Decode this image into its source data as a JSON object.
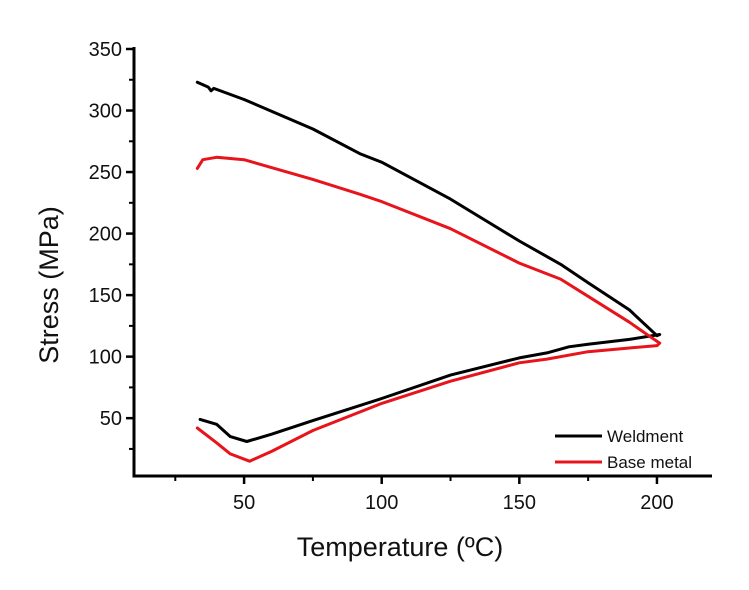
{
  "chart_data": {
    "type": "line",
    "title": "",
    "xlabel": "Temperature (ºC)",
    "ylabel": "Stress (MPa)",
    "xlim": [
      10,
      220
    ],
    "ylim": [
      3,
      350
    ],
    "xticks": [
      50,
      100,
      150,
      200
    ],
    "xminor": [
      25,
      75,
      125,
      175
    ],
    "yticks": [
      50,
      100,
      150,
      200,
      250,
      300,
      350
    ],
    "yminor": [
      25,
      75,
      125,
      175,
      225,
      275,
      325
    ],
    "grid": false,
    "legend_position": "bottom-right",
    "series": [
      {
        "name": "Weldment",
        "color": "#000000",
        "x": [
          33,
          37,
          38,
          39,
          50,
          75,
          92,
          100,
          125,
          150,
          165,
          175,
          190,
          200,
          201,
          190,
          175,
          168,
          160,
          150,
          125,
          100,
          75,
          60,
          51,
          45,
          40,
          34
        ],
        "y": [
          323,
          319,
          316,
          318,
          309,
          285,
          265,
          258,
          228,
          194,
          175,
          160,
          138,
          117,
          118,
          114,
          110,
          108,
          103,
          99,
          85,
          66,
          48,
          37,
          31,
          35,
          45,
          49
        ]
      },
      {
        "name": "Base metal",
        "color": "#e8141b",
        "x": [
          33,
          35,
          40,
          50,
          75,
          92,
          100,
          125,
          150,
          165,
          175,
          190,
          197,
          201,
          200,
          190,
          175,
          160,
          150,
          125,
          100,
          75,
          60,
          52,
          45,
          40,
          33
        ],
        "y": [
          253,
          260,
          262,
          260,
          244,
          232,
          226,
          204,
          176,
          163,
          149,
          128,
          117,
          111,
          109,
          107,
          104,
          98,
          95,
          80,
          62,
          40,
          23,
          15,
          21,
          30,
          42
        ]
      }
    ]
  }
}
